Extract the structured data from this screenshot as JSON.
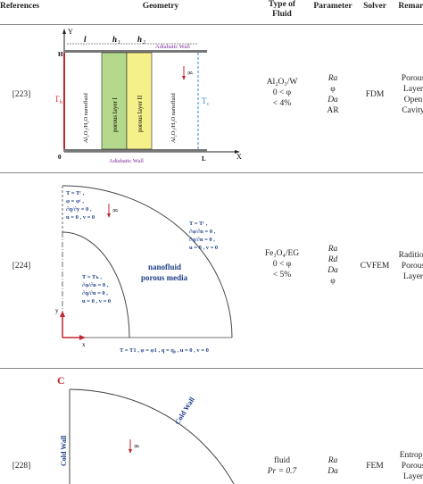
{
  "header": {
    "references": "References",
    "geometry": "Geometry",
    "fluid_type_line1": "Type of",
    "fluid_type_line2": "Fluid",
    "parameter": "Parameter",
    "solver": "Solver",
    "remarks": "Remark"
  },
  "rows": [
    {
      "ref": "[223]",
      "fluid": [
        "Al₂O₃/W",
        "0 < φ",
        "< 4%"
      ],
      "params": [
        "Ra",
        "φ",
        "Da",
        "AR"
      ],
      "params_italic": [
        true,
        false,
        true,
        false
      ],
      "solver": "FDM",
      "remarks": [
        "Porous",
        "Layer",
        "Open",
        "Cavity"
      ],
      "diagram": {
        "axis_y": "Y",
        "axis_x": "X",
        "label_H": "H",
        "label_0": "0",
        "label_L": "L",
        "dim_l": "l",
        "dim_h1": "h",
        "dim_h1_sub": "1",
        "dim_h2": "h",
        "dim_h2_sub": "2",
        "top_wall": "Adiabatic Wall",
        "bottom_wall": "Adiabatic Wall",
        "th": "T",
        "th_sub": "h",
        "tc": "T",
        "tc_sub": "c",
        "g": "g",
        "layer_left": "Al₂O₃/H₂O nanofluid",
        "layer_p1": "porous layer I",
        "layer_p2": "porous layer II",
        "layer_right": "Al₂O₃/H₂O nanofluid",
        "layer_p1_color": "#b5d98c",
        "layer_p2_color": "#f6f08a"
      }
    },
    {
      "ref": "[224]",
      "fluid": [
        "Fe₃O₄/EG",
        "0 < φ",
        "< 5%"
      ],
      "params": [
        "Ra",
        "Rd",
        "Da",
        "φ"
      ],
      "params_italic": [
        true,
        true,
        true,
        false
      ],
      "solver": "CVFEM",
      "remarks": [
        "Radition",
        "Porous",
        "Layer"
      ],
      "diagram": {
        "outer_bc": [
          "T = Tᶜ ,",
          "φ = φᶜ ,",
          "∂q/∂y = 0 ,",
          "u = 0 , v = 0"
        ],
        "right_bc": [
          "T = Tᶜ ,",
          "∂φ/∂n = 0 ,",
          "∂q/∂n = 0 ,",
          "u = 0 , v = 0"
        ],
        "inner_bc": [
          "T = Tₕ ,",
          "∂φ/∂n = 0 ,",
          "∂q/∂n = 0 ,",
          "u = 0 , v = 0"
        ],
        "nanofluid": "nanofluid",
        "porous": "porous media",
        "bottom_bc": "T = T1 ,  φ = φ1 ,  q = q₀ , u = 0 , v = 0",
        "axis_x": "x",
        "axis_y": "y",
        "g": "g"
      }
    },
    {
      "ref": "[228]",
      "fluid": [
        "fluid",
        "Pr = 0.7"
      ],
      "params": [
        "Ra",
        "Da"
      ],
      "params_italic": [
        true,
        true
      ],
      "solver": "FEM",
      "remarks": [
        "Entropy",
        "Porous",
        "Layer"
      ],
      "diagram": {
        "corner": "C",
        "cold_wall_left": "Cold Wall",
        "cold_wall_arc": "Cold Wall",
        "g": "g"
      }
    }
  ]
}
